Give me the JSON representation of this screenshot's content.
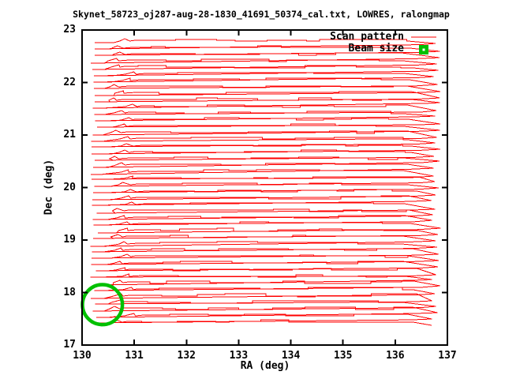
{
  "title": "Skynet_58723_oj287-aug-28-1830_41691_50374_cal.txt, LOWRES, ralongmap",
  "colors": {
    "scan": "#ff0000",
    "beam": "#00c000",
    "axis": "#000000",
    "background": "#ffffff"
  },
  "legend": {
    "scan_label": "Scan pattern",
    "beam_label": "Beam size"
  },
  "chart_data": {
    "type": "line",
    "title": "Skynet_58723_oj287-aug-28-1830_41691_50374_cal.txt, LOWRES, ralongmap",
    "xlabel": "RA (deg)",
    "ylabel": "Dec (deg)",
    "xlim": [
      130,
      137
    ],
    "ylim": [
      17,
      23
    ],
    "x_ticks": [
      130,
      131,
      132,
      133,
      134,
      135,
      136,
      137
    ],
    "y_ticks": [
      17,
      18,
      19,
      20,
      21,
      22,
      23
    ],
    "grid": false,
    "legend_position": "top-right",
    "series": [
      {
        "name": "Scan pattern",
        "type": "trajectory",
        "color": "#ff0000",
        "pattern": "raster scan: horizontal rows along RA (left to right) with fast diagonal return slews and turnaround overshoot hooks at both ends",
        "rows": 44,
        "dec_first_row": 22.8,
        "dec_last_row": 17.45,
        "row_spacing_deg": 0.1244,
        "ra_scan_start": 130.5,
        "ra_scan_end": 136.45,
        "ra_overshoot": 136.78,
        "ra_return_left": 130.15,
        "noise_deg": 0.025,
        "seed": 42
      },
      {
        "name": "Beam size",
        "type": "circle",
        "color": "#00c000",
        "center_ra": 130.39,
        "center_dec": 17.77,
        "radius_deg": 0.38
      }
    ]
  }
}
